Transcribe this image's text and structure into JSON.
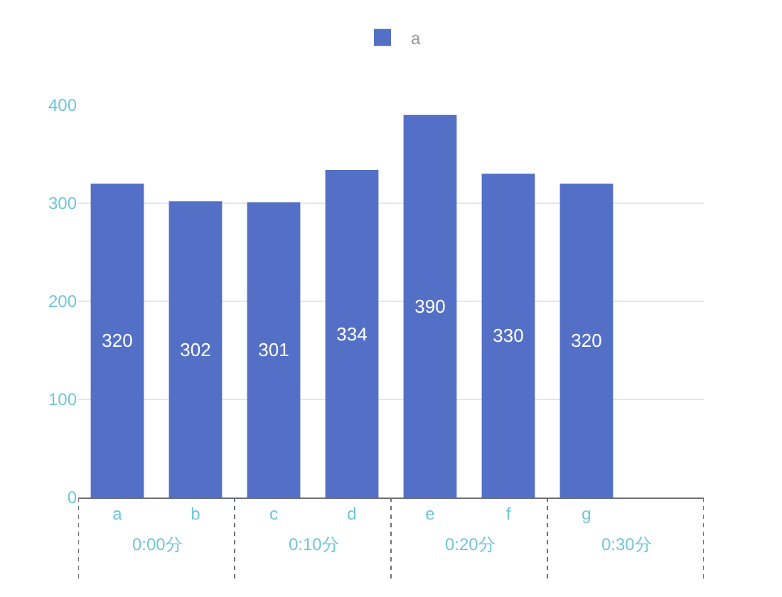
{
  "chart_data": {
    "type": "bar",
    "categories": [
      "a",
      "b",
      "c",
      "d",
      "e",
      "f",
      "g",
      null
    ],
    "series": [
      {
        "name": "a",
        "color": "#5470c6",
        "values": [
          320,
          302,
          301,
          334,
          390,
          330,
          320,
          null
        ]
      }
    ],
    "ylim": [
      0,
      400
    ],
    "yticks": [
      0,
      100,
      200,
      300,
      400
    ],
    "grid": "y",
    "legend": "top",
    "data_labels": true,
    "annotations": [
      "0:00分",
      "0:10分",
      "0:20分",
      "0:30分"
    ]
  }
}
